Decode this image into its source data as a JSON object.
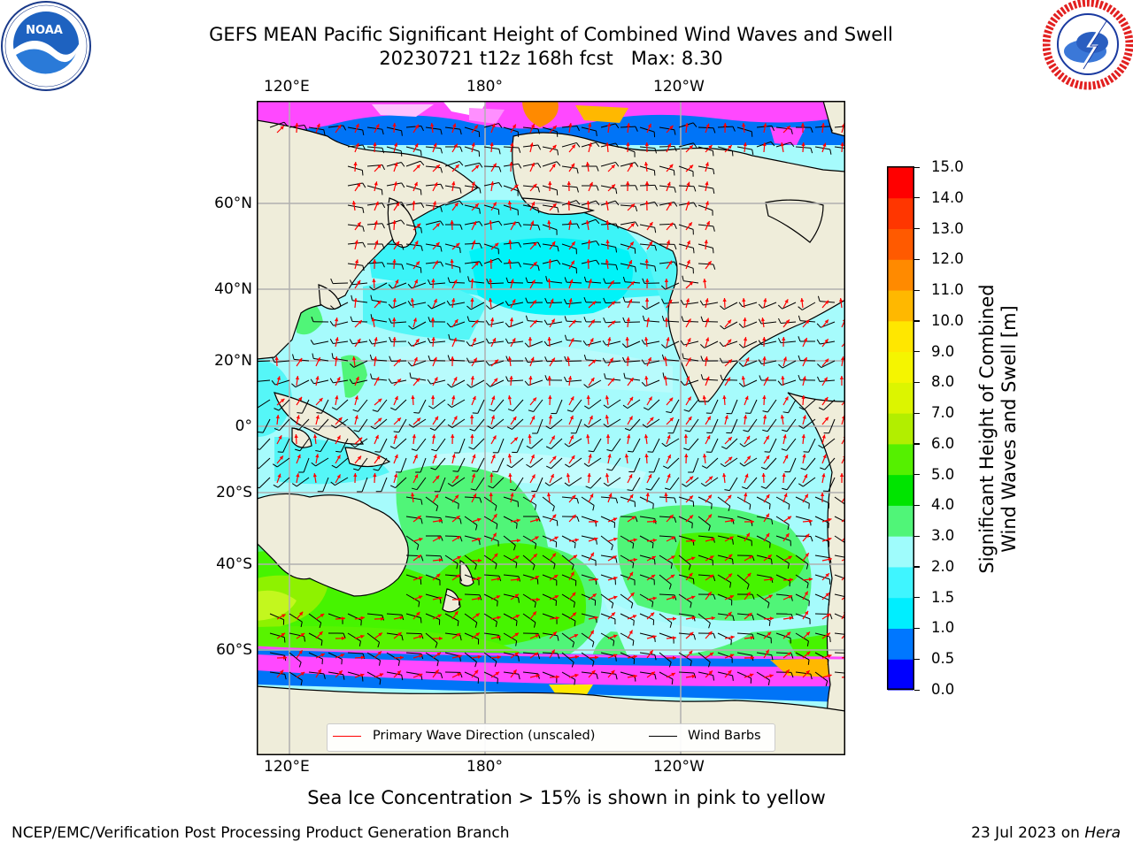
{
  "header": {
    "title_line1": "GEFS MEAN Pacific Significant Height of Combined Wind Waves and Swell",
    "title_line2": "20230721 t12z 168h fcst   Max: 8.30"
  },
  "logos": {
    "left": "noaa-logo",
    "right": "nws-logo"
  },
  "map": {
    "top_lon_labels": [
      "120°E",
      "180°",
      "120°W"
    ],
    "bottom_lon_labels": [
      "120°E",
      "180°",
      "120°W"
    ],
    "lat_labels": [
      "60°N",
      "40°N",
      "20°N",
      "0°",
      "20°S",
      "40°S",
      "60°S"
    ],
    "colors": {
      "land": "#efedda",
      "ocean_mid": "#9ffafc",
      "ocean_light": "#b5fbfd",
      "cyan": "#00f5f8",
      "green_light": "#40f776",
      "green": "#46f400",
      "yellow_green": "#c3f71e",
      "blue": "#0074f7",
      "ice_pink": "#ff48ff",
      "wave_dir": "#ff0000",
      "barb": "#000000"
    }
  },
  "legend": {
    "wave_direction": "Primary Wave Direction (unscaled)",
    "wind_barbs": "Wind Barbs"
  },
  "colorbar": {
    "ticks": [
      "0.0",
      "0.5",
      "1.0",
      "1.5",
      "2.0",
      "3.0",
      "4.0",
      "5.0",
      "6.0",
      "7.0",
      "8.0",
      "9.0",
      "10.0",
      "11.0",
      "12.0",
      "13.0",
      "14.0",
      "15.0"
    ],
    "colors": [
      "#0000ff",
      "#0077ff",
      "#00eeff",
      "#3ff5ff",
      "#9ffcfc",
      "#50f578",
      "#00e400",
      "#55f000",
      "#b2ee00",
      "#dcf500",
      "#f5f500",
      "#ffe700",
      "#ffb800",
      "#ff8a00",
      "#ff5a00",
      "#ff3600",
      "#ff0000"
    ],
    "label_line1": "Significant Height of Combined",
    "label_line2": "Wind Waves and Swell [m]"
  },
  "footer": {
    "ice_note": "Sea Ice Concentration > 15% is shown in pink to yellow",
    "credit": "NCEP/EMC/Verification Post Processing Product Generation Branch",
    "date": "23 Jul 2023 on ",
    "machine": "Hera"
  }
}
